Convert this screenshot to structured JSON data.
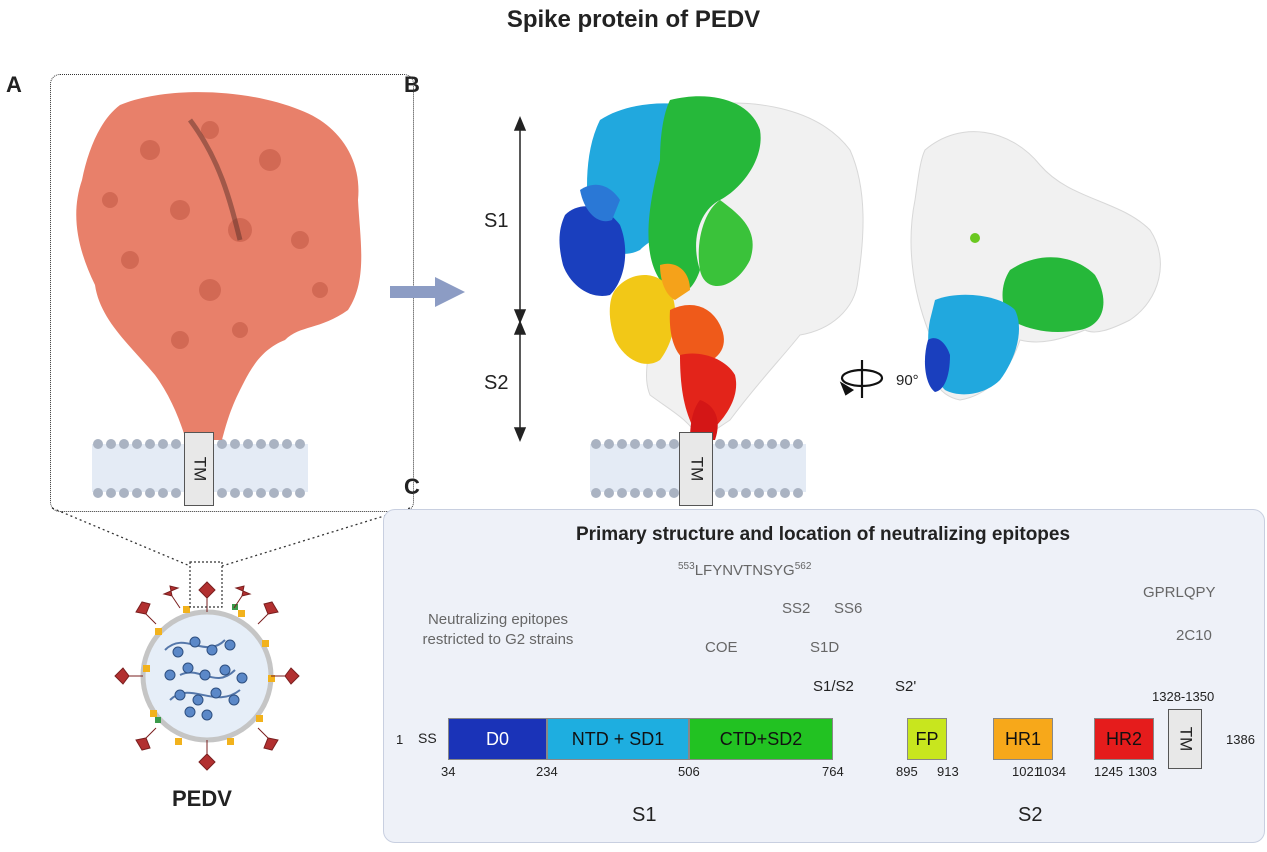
{
  "title": "Spike protein of PEDV",
  "panels": {
    "a": "A",
    "b": "B",
    "c": "C"
  },
  "tm_label": "TM",
  "virus_label": "PEDV",
  "s1_label": "S1",
  "s2_label": "S2",
  "rotation_label": "90°",
  "panel_c": {
    "title": "Primary structure and location of neutralizing epitopes",
    "epitopes": {
      "g2_line1": "Neutralizing epitopes",
      "g2_line2": "restricted to G2 strains",
      "seq_start": "553",
      "seq": "LFYNVTNSYG",
      "seq_end": "562",
      "ss2": "SS2",
      "ss6": "SS6",
      "coe": "COE",
      "s1d": "S1D",
      "gprlqpy": "GPRLQPY",
      "c2c10": "2C10"
    },
    "cleavage": {
      "s1s2": "S1/S2",
      "s2prime": "S2'"
    },
    "domains": {
      "ss": "SS",
      "d0": "D0",
      "ntd": "NTD + SD1",
      "ctd": "CTD+SD2",
      "fp": "FP",
      "hr1": "HR1",
      "hr2": "HR2",
      "tm": "TM"
    },
    "positions": {
      "start": "1",
      "end": "1386",
      "p34": "34",
      "p234": "234",
      "p506": "506",
      "p764": "764",
      "p895": "895",
      "p913": "913",
      "p1021": "1021",
      "p1034": "1034",
      "p1245": "1245",
      "p1303": "1303",
      "tm_range": "1328-1350"
    },
    "region_s1": "S1",
    "region_s2": "S2"
  },
  "colors": {
    "spike_salmon": "#e8806a",
    "d0": "#1a33b8",
    "ntd": "#1eaee0",
    "ctd": "#22c222",
    "fp": "#c8e61e",
    "hr1": "#f7a81a",
    "hr2": "#e51c1c",
    "panel_bg": "#eef1f8"
  }
}
